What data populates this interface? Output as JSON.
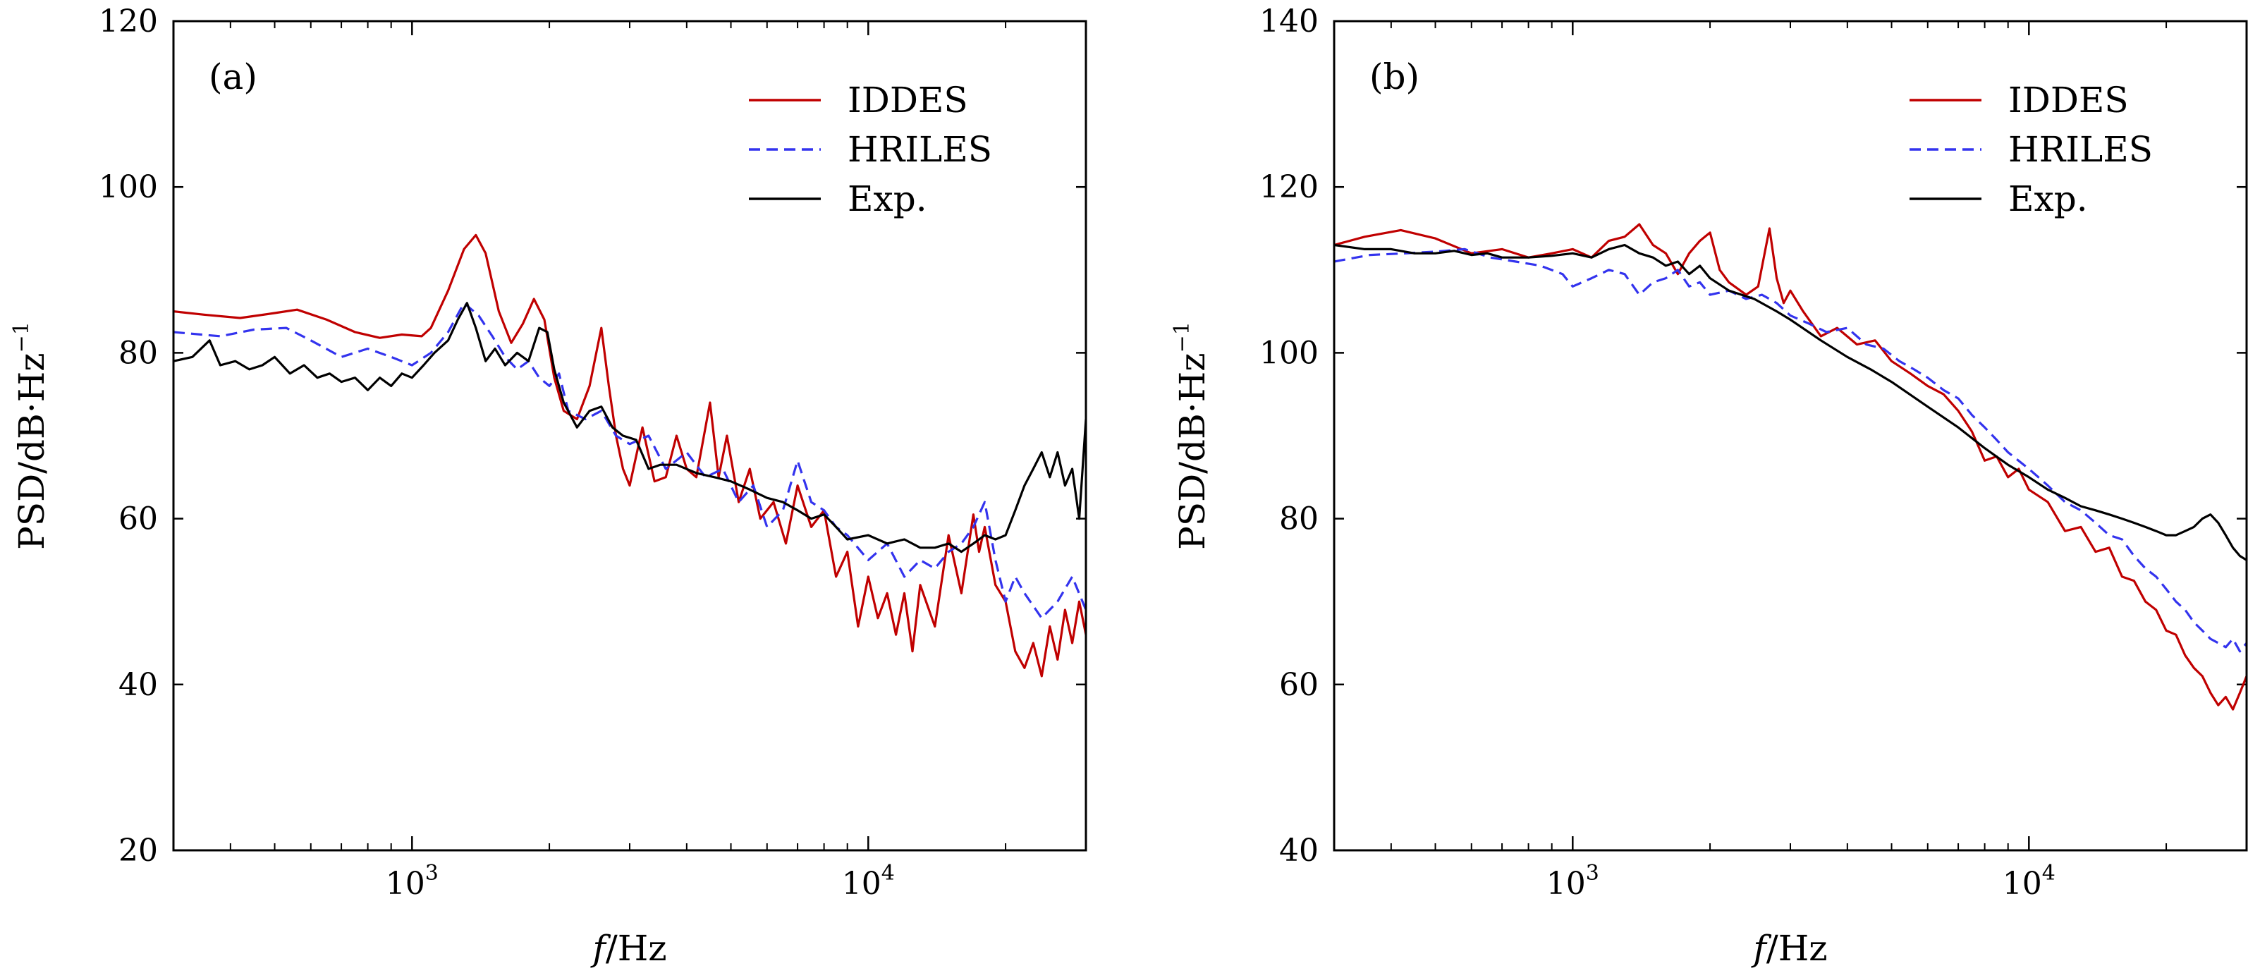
{
  "chart_data": [
    {
      "type": "line",
      "panel_label": "(a)",
      "xlabel_var": "f",
      "xlabel_unit": "/Hz",
      "ylabel_main": "PSD/dB·Hz",
      "ylabel_sup": "−1",
      "xscale": "log",
      "xlim": [
        300,
        30000
      ],
      "ylim": [
        20,
        120
      ],
      "yticks": [
        "20",
        "40",
        "60",
        "80",
        "100",
        "120"
      ],
      "xticks": [
        {
          "base": "10",
          "exp": "3",
          "value": 1000
        },
        {
          "base": "10",
          "exp": "4",
          "value": 10000
        }
      ],
      "legend_position": "top-right",
      "series": [
        {
          "name": "IDDES",
          "color": "#c00000",
          "style": "solid",
          "x": [
            300,
            350,
            420,
            500,
            560,
            650,
            750,
            850,
            950,
            1050,
            1100,
            1200,
            1300,
            1380,
            1450,
            1550,
            1650,
            1750,
            1850,
            1950,
            2050,
            2150,
            2300,
            2450,
            2600,
            2700,
            2800,
            2900,
            3000,
            3200,
            3400,
            3600,
            3800,
            4000,
            4200,
            4500,
            4700,
            4900,
            5200,
            5500,
            5800,
            6200,
            6600,
            7000,
            7500,
            8000,
            8500,
            9000,
            9500,
            10000,
            10500,
            11000,
            11500,
            12000,
            12500,
            13000,
            14000,
            15000,
            16000,
            17000,
            17500,
            18000,
            19000,
            20000,
            21000,
            22000,
            23000,
            24000,
            25000,
            26000,
            27000,
            28000,
            29000,
            30000
          ],
          "y": [
            85,
            84.6,
            84.2,
            84.8,
            85.2,
            84.0,
            82.5,
            81.8,
            82.2,
            82.0,
            83.0,
            87.5,
            92.5,
            94.2,
            92.0,
            85.0,
            81.2,
            83.5,
            86.5,
            84.0,
            77.0,
            73.0,
            72.0,
            76.0,
            83.0,
            76.0,
            70.0,
            66.0,
            64.0,
            71.0,
            64.5,
            65.0,
            70.0,
            66.0,
            65.0,
            74.0,
            65.0,
            70.0,
            62.0,
            66.0,
            60.0,
            62.0,
            57.0,
            64.0,
            59.0,
            61.0,
            53.0,
            56.0,
            47.0,
            53.0,
            48.0,
            51.0,
            46.0,
            51.0,
            44.0,
            52.0,
            47.0,
            58.0,
            51.0,
            60.5,
            56.0,
            59.0,
            52.0,
            50.0,
            44.0,
            42.0,
            45.0,
            41.0,
            47.0,
            43.0,
            49.0,
            45.0,
            50.0,
            46.0
          ]
        },
        {
          "name": "HRILES",
          "color": "#3333ee",
          "style": "dashed",
          "x": [
            300,
            380,
            450,
            530,
            600,
            700,
            800,
            900,
            1000,
            1100,
            1200,
            1300,
            1400,
            1500,
            1600,
            1700,
            1800,
            1900,
            2000,
            2100,
            2200,
            2400,
            2600,
            2800,
            3000,
            3300,
            3600,
            4000,
            4400,
            4800,
            5200,
            5600,
            6000,
            6500,
            7000,
            7500,
            8000,
            8500,
            9000,
            10000,
            11000,
            12000,
            13000,
            14000,
            15000,
            16000,
            17000,
            18000,
            19000,
            20000,
            21000,
            22000,
            24000,
            26000,
            28000,
            30000
          ],
          "y": [
            82.5,
            82.0,
            82.8,
            83.0,
            81.5,
            79.5,
            80.5,
            79.5,
            78.5,
            80.0,
            82.5,
            86.0,
            84.5,
            82.0,
            79.5,
            78.0,
            79.0,
            77.0,
            76.0,
            77.5,
            73.0,
            72.0,
            73.0,
            70.0,
            69.0,
            70.0,
            66.0,
            68.0,
            65.0,
            66.0,
            62.0,
            64.0,
            59.0,
            61.0,
            67.0,
            62.0,
            61.0,
            59.0,
            58.0,
            55.0,
            57.0,
            53.0,
            55.0,
            54.0,
            56.0,
            57.0,
            59.0,
            62.0,
            55.0,
            50.0,
            53.0,
            51.0,
            48.0,
            50.0,
            53.0,
            49.0
          ]
        },
        {
          "name": "Exp.",
          "color": "#000000",
          "style": "solid",
          "x": [
            300,
            330,
            360,
            380,
            410,
            440,
            470,
            500,
            540,
            580,
            620,
            660,
            700,
            750,
            800,
            850,
            900,
            950,
            1000,
            1060,
            1120,
            1200,
            1260,
            1320,
            1380,
            1450,
            1520,
            1600,
            1700,
            1800,
            1900,
            1980,
            2050,
            2150,
            2300,
            2450,
            2600,
            2750,
            2900,
            3100,
            3300,
            3500,
            3800,
            4200,
            4600,
            5000,
            5500,
            6000,
            6500,
            7000,
            7500,
            8000,
            8500,
            9000,
            10000,
            11000,
            12000,
            13000,
            14000,
            15000,
            16000,
            17000,
            18000,
            19000,
            20000,
            21000,
            22000,
            23000,
            24000,
            25000,
            26000,
            27000,
            28000,
            29000,
            30000
          ],
          "y": [
            79.0,
            79.5,
            81.5,
            78.5,
            79.0,
            78.0,
            78.5,
            79.5,
            77.5,
            78.5,
            77.0,
            77.5,
            76.5,
            77.0,
            75.5,
            77.0,
            76.0,
            77.5,
            77.0,
            78.5,
            80.0,
            81.5,
            84.0,
            86.0,
            83.0,
            79.0,
            80.5,
            78.5,
            80.0,
            79.0,
            83.0,
            82.5,
            78.0,
            74.0,
            71.0,
            73.0,
            73.5,
            71.0,
            70.0,
            69.5,
            66.0,
            66.5,
            66.5,
            65.5,
            65.0,
            64.5,
            63.5,
            62.5,
            62.0,
            61.0,
            60.0,
            60.5,
            59.0,
            57.5,
            58.0,
            57.0,
            57.5,
            56.5,
            56.5,
            57.0,
            56.0,
            57.0,
            58.0,
            57.5,
            58.0,
            61.0,
            64.0,
            66.0,
            68.0,
            65.0,
            68.0,
            64.0,
            66.0,
            60.0,
            72.0
          ]
        }
      ]
    },
    {
      "type": "line",
      "panel_label": "(b)",
      "xlabel_var": "f",
      "xlabel_unit": "/Hz",
      "ylabel_main": "PSD/dB·Hz",
      "ylabel_sup": "−1",
      "xscale": "log",
      "xlim": [
        300,
        30000
      ],
      "ylim": [
        40,
        140
      ],
      "yticks": [
        "40",
        "60",
        "80",
        "100",
        "120",
        "140"
      ],
      "xticks": [
        {
          "base": "10",
          "exp": "3",
          "value": 1000
        },
        {
          "base": "10",
          "exp": "4",
          "value": 10000
        }
      ],
      "legend_position": "top-right",
      "series": [
        {
          "name": "IDDES",
          "color": "#c00000",
          "style": "solid",
          "x": [
            300,
            350,
            420,
            500,
            600,
            700,
            800,
            900,
            1000,
            1100,
            1200,
            1300,
            1400,
            1500,
            1600,
            1700,
            1800,
            1900,
            2000,
            2100,
            2200,
            2400,
            2550,
            2700,
            2800,
            2900,
            3000,
            3200,
            3500,
            3800,
            4200,
            4600,
            5000,
            5500,
            6000,
            6500,
            7000,
            7500,
            8000,
            8500,
            9000,
            9500,
            10000,
            11000,
            12000,
            13000,
            14000,
            15000,
            16000,
            17000,
            18000,
            19000,
            20000,
            21000,
            22000,
            23000,
            24000,
            25000,
            26000,
            27000,
            28000,
            29000,
            30000
          ],
          "y": [
            113.0,
            114.0,
            114.8,
            113.8,
            112.0,
            112.5,
            111.5,
            112.0,
            112.5,
            111.5,
            113.5,
            114.0,
            115.5,
            113.0,
            112.0,
            109.5,
            112.0,
            113.5,
            114.5,
            110.0,
            108.5,
            107.0,
            108.0,
            115.0,
            109.0,
            106.0,
            107.5,
            105.0,
            102.0,
            103.0,
            101.0,
            101.5,
            99.0,
            97.5,
            96.0,
            95.0,
            93.0,
            90.5,
            87.0,
            87.5,
            85.0,
            86.0,
            83.5,
            82.0,
            78.5,
            79.0,
            76.0,
            76.5,
            73.0,
            72.5,
            70.0,
            69.0,
            66.5,
            66.0,
            63.5,
            62.0,
            61.0,
            59.0,
            57.5,
            58.5,
            57.0,
            59.0,
            61.0
          ]
        },
        {
          "name": "HRILES",
          "color": "#3333ee",
          "style": "dashed",
          "x": [
            300,
            360,
            430,
            500,
            580,
            660,
            750,
            850,
            950,
            1000,
            1100,
            1200,
            1300,
            1400,
            1500,
            1600,
            1700,
            1800,
            1900,
            2000,
            2200,
            2400,
            2600,
            2800,
            3000,
            3300,
            3600,
            4000,
            4400,
            4800,
            5200,
            5600,
            6000,
            6500,
            7000,
            7500,
            8000,
            8500,
            9000,
            10000,
            11000,
            12000,
            13000,
            14000,
            15000,
            16000,
            17000,
            18000,
            19000,
            20000,
            21000,
            22000,
            23000,
            24000,
            25000,
            26000,
            27000,
            28000,
            29000,
            30000
          ],
          "y": [
            111.0,
            111.8,
            112.0,
            112.2,
            112.5,
            111.5,
            111.0,
            110.5,
            109.5,
            108.0,
            109.0,
            110.0,
            109.5,
            107.0,
            108.5,
            109.0,
            110.0,
            108.0,
            108.5,
            107.0,
            107.5,
            106.5,
            107.0,
            106.0,
            104.5,
            103.5,
            102.5,
            103.0,
            101.0,
            100.5,
            99.0,
            98.0,
            97.0,
            95.5,
            94.5,
            92.5,
            91.0,
            89.5,
            88.0,
            86.0,
            84.0,
            82.0,
            81.0,
            79.5,
            78.0,
            77.5,
            75.5,
            74.0,
            73.0,
            71.5,
            70.0,
            69.0,
            67.5,
            66.5,
            65.5,
            65.0,
            64.5,
            65.5,
            64.0,
            65.0
          ]
        },
        {
          "name": "Exp.",
          "color": "#000000",
          "style": "solid",
          "x": [
            300,
            350,
            400,
            450,
            500,
            550,
            600,
            650,
            700,
            800,
            900,
            1000,
            1100,
            1200,
            1300,
            1400,
            1500,
            1600,
            1700,
            1800,
            1900,
            2000,
            2200,
            2500,
            2800,
            3000,
            3500,
            4000,
            4500,
            5000,
            6000,
            7000,
            8000,
            9000,
            10000,
            11000,
            12000,
            13000,
            14000,
            15000,
            16000,
            17000,
            18000,
            19000,
            20000,
            21000,
            22000,
            23000,
            24000,
            25000,
            26000,
            27000,
            28000,
            29000,
            30000
          ],
          "y": [
            113.0,
            112.5,
            112.5,
            112.0,
            112.0,
            112.3,
            111.8,
            112.0,
            111.5,
            111.5,
            111.7,
            112.0,
            111.5,
            112.5,
            113.0,
            112.0,
            111.5,
            110.5,
            111.0,
            109.5,
            110.5,
            109.0,
            107.5,
            106.5,
            105.0,
            104.0,
            101.5,
            99.5,
            98.0,
            96.5,
            93.5,
            91.0,
            88.5,
            86.5,
            85.0,
            83.5,
            82.5,
            81.5,
            81.0,
            80.5,
            80.0,
            79.5,
            79.0,
            78.5,
            78.0,
            78.0,
            78.5,
            79.0,
            80.0,
            80.5,
            79.5,
            78.0,
            76.5,
            75.5,
            75.0
          ]
        }
      ]
    }
  ]
}
